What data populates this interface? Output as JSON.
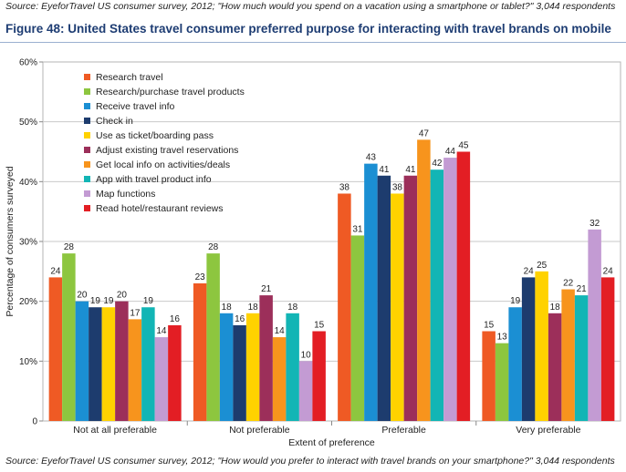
{
  "header": {
    "top_source": "Source: EyeforTravel US consumer survey, 2012; \"How much would you spend on a vacation using a smartphone or tablet?\" 3,044 respondents",
    "title": "Figure 48: United States travel consumer preferred purpose for interacting with travel brands on mobile",
    "bottom_source": "Source: EyeforTravel US consumer survey, 2012; \"How would you prefer to interact with travel brands on your smartphone?\" 3,044 respondents"
  },
  "chart_data": {
    "type": "bar",
    "xlabel": "Extent of preference",
    "ylabel": "Percentage of consumers surveyed",
    "ylim": [
      0,
      60
    ],
    "yticks": [
      "0",
      "10%",
      "20%",
      "30%",
      "40%",
      "50%",
      "60%"
    ],
    "grid": true,
    "legend_position": "top-left",
    "categories": [
      "Not at all preferable",
      "Not preferable",
      "Preferable",
      "Very preferable"
    ],
    "series": [
      {
        "name": "Research travel",
        "color": "#ef5a24",
        "values": [
          24,
          23,
          38,
          15
        ]
      },
      {
        "name": "Research/purchase travel products",
        "color": "#8dc63f",
        "values": [
          28,
          28,
          31,
          13
        ]
      },
      {
        "name": "Receive travel info",
        "color": "#1b8fd3",
        "values": [
          20,
          18,
          43,
          19
        ]
      },
      {
        "name": "Check in",
        "color": "#1d3c6e",
        "values": [
          19,
          16,
          41,
          24
        ]
      },
      {
        "name": "Use as ticket/boarding pass",
        "color": "#ffd200",
        "values": [
          19,
          18,
          38,
          25
        ]
      },
      {
        "name": "Adjust existing travel reservations",
        "color": "#9c2f5a",
        "values": [
          20,
          21,
          41,
          18
        ]
      },
      {
        "name": "Get local info on activities/deals",
        "color": "#f7941d",
        "values": [
          17,
          14,
          47,
          22
        ]
      },
      {
        "name": "App with travel product info",
        "color": "#12b5b5",
        "values": [
          19,
          18,
          42,
          21
        ]
      },
      {
        "name": "Map functions",
        "color": "#c39bd3",
        "values": [
          14,
          10,
          44,
          32
        ]
      },
      {
        "name": "Read hotel/restaurant reviews",
        "color": "#e31e24",
        "values": [
          16,
          15,
          45,
          24
        ]
      }
    ]
  }
}
